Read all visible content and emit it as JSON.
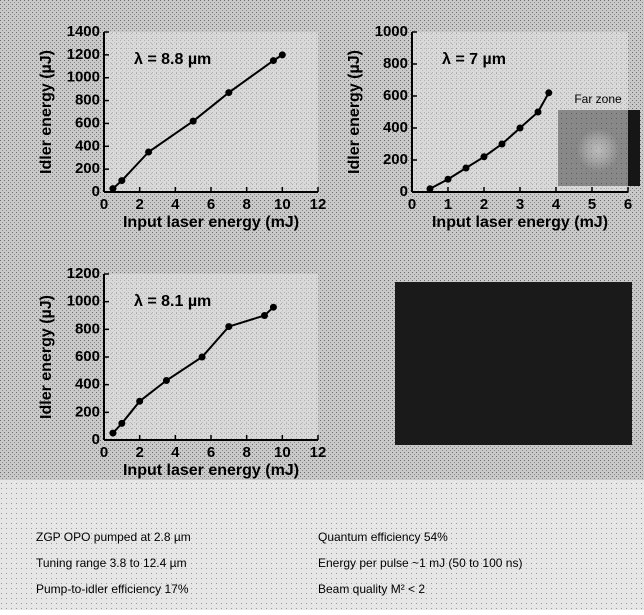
{
  "chart_data": [
    {
      "type": "line",
      "title": "λ = 8.8 µm",
      "x_label": "Input laser energy (mJ)",
      "y_label": "Idler energy (µJ)",
      "x": [
        0.5,
        1,
        2.5,
        5,
        7,
        9.5,
        10
      ],
      "values": [
        30,
        100,
        350,
        620,
        870,
        1150,
        1200
      ],
      "xlim": [
        0,
        12
      ],
      "ylim": [
        0,
        1400
      ],
      "xticks": [
        0,
        2,
        4,
        6,
        8,
        10,
        12
      ],
      "yticks": [
        0,
        200,
        400,
        600,
        800,
        1000,
        1200,
        1400
      ],
      "color": "#000000",
      "markers": true
    },
    {
      "type": "line",
      "title": "λ = 7 µm",
      "x_label": "Input laser energy (mJ)",
      "y_label": "Idler energy (µJ)",
      "annotation": "Far zone",
      "x": [
        0.5,
        1,
        1.5,
        2,
        2.5,
        3,
        3.5,
        3.8
      ],
      "values": [
        20,
        80,
        150,
        220,
        300,
        400,
        500,
        620
      ],
      "xlim": [
        0,
        6
      ],
      "ylim": [
        0,
        1000
      ],
      "xticks": [
        0,
        1,
        2,
        3,
        4,
        5,
        6
      ],
      "yticks": [
        0,
        200,
        400,
        600,
        800,
        1000
      ],
      "color": "#000000",
      "markers": true
    },
    {
      "type": "line",
      "title": "λ = 8.1 µm",
      "x_label": "Input laser energy (mJ)",
      "y_label": "Idler energy (µJ)",
      "x": [
        0.5,
        1,
        2,
        3.5,
        5.5,
        7,
        9,
        9.5
      ],
      "values": [
        50,
        120,
        280,
        430,
        600,
        820,
        900,
        960
      ],
      "xlim": [
        0,
        12
      ],
      "ylim": [
        0,
        1200
      ],
      "xticks": [
        0,
        2,
        4,
        6,
        8,
        10,
        12
      ],
      "yticks": [
        0,
        200,
        400,
        600,
        800,
        1000,
        1200
      ],
      "color": "#000000",
      "markers": true
    }
  ],
  "notes": {
    "left": [
      "ZGP OPO pumped at 2.8 µm",
      "Tuning range 3.8 to 12.4 µm",
      "Pump-to-idler efficiency 17%"
    ],
    "right": [
      "Quantum efficiency 54%",
      "Energy per pulse ~1 mJ (50 to 100 ns)",
      "Beam quality M² < 2"
    ]
  }
}
